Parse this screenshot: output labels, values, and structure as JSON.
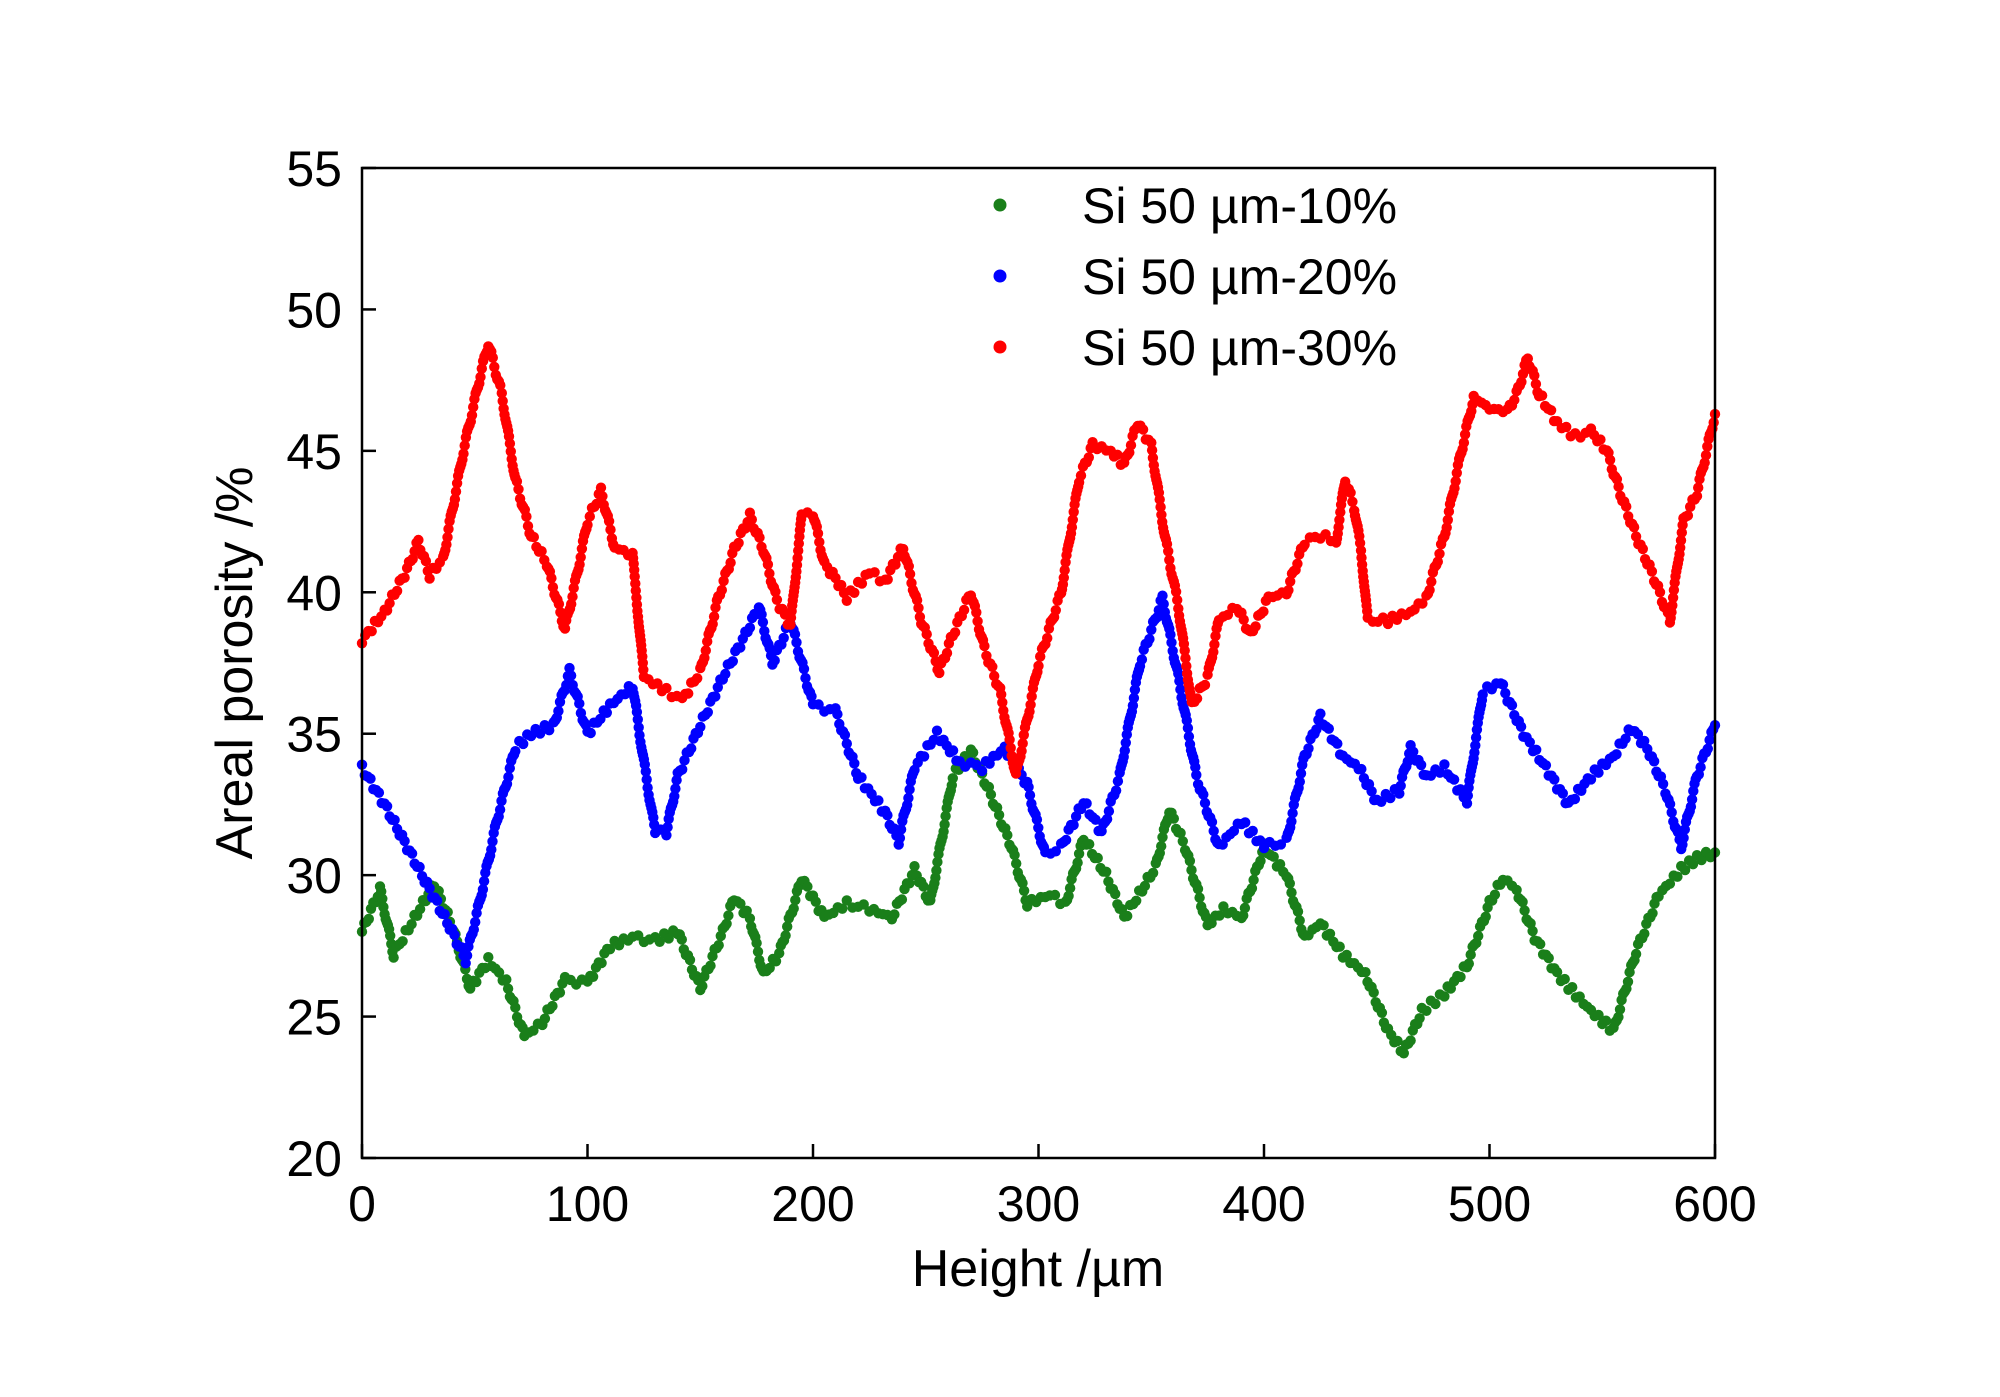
{
  "chart_data": {
    "type": "scatter",
    "title": "",
    "xlabel": "Height /µm",
    "ylabel": "Areal porosity /%",
    "xlim": [
      0,
      600
    ],
    "ylim": [
      20,
      55
    ],
    "xticks": [
      0,
      100,
      200,
      300,
      400,
      500,
      600
    ],
    "yticks": [
      20,
      25,
      30,
      35,
      40,
      45,
      50,
      55
    ],
    "grid": false,
    "legend_position": "top-right",
    "series": [
      {
        "name": "Si 50 µm-10%",
        "color": "#1a7f1a",
        "anchors": [
          [
            0,
            28
          ],
          [
            8,
            29.5
          ],
          [
            14,
            27.2
          ],
          [
            22,
            28.3
          ],
          [
            32,
            29.7
          ],
          [
            40,
            28.2
          ],
          [
            48,
            26
          ],
          [
            56,
            27
          ],
          [
            64,
            26.2
          ],
          [
            72,
            24.3
          ],
          [
            80,
            24.8
          ],
          [
            90,
            26.3
          ],
          [
            100,
            26.2
          ],
          [
            110,
            27.5
          ],
          [
            120,
            27.8
          ],
          [
            130,
            27.7
          ],
          [
            140,
            28
          ],
          [
            150,
            26
          ],
          [
            160,
            28
          ],
          [
            165,
            29.2
          ],
          [
            172,
            28.5
          ],
          [
            178,
            26.5
          ],
          [
            185,
            27.2
          ],
          [
            195,
            29.9
          ],
          [
            205,
            28.5
          ],
          [
            215,
            29
          ],
          [
            225,
            28.8
          ],
          [
            235,
            28.5
          ],
          [
            245,
            30.2
          ],
          [
            252,
            29
          ],
          [
            262,
            33.5
          ],
          [
            270,
            34.4
          ],
          [
            278,
            33
          ],
          [
            288,
            31
          ],
          [
            295,
            29
          ],
          [
            305,
            29.3
          ],
          [
            312,
            29
          ],
          [
            320,
            31.3
          ],
          [
            330,
            30
          ],
          [
            338,
            28.5
          ],
          [
            346,
            29.5
          ],
          [
            352,
            30.3
          ],
          [
            358,
            32.3
          ],
          [
            365,
            31
          ],
          [
            375,
            28.2
          ],
          [
            382,
            28.8
          ],
          [
            390,
            28.5
          ],
          [
            400,
            31
          ],
          [
            410,
            30
          ],
          [
            418,
            27.8
          ],
          [
            425,
            28.3
          ],
          [
            435,
            27.2
          ],
          [
            445,
            26.5
          ],
          [
            455,
            24.5
          ],
          [
            462,
            23.7
          ],
          [
            470,
            25.2
          ],
          [
            480,
            25.8
          ],
          [
            490,
            26.8
          ],
          [
            500,
            29
          ],
          [
            506,
            29.9
          ],
          [
            512,
            29.5
          ],
          [
            520,
            27.8
          ],
          [
            530,
            26.5
          ],
          [
            545,
            25.2
          ],
          [
            555,
            24.5
          ],
          [
            565,
            27.3
          ],
          [
            575,
            29.3
          ],
          [
            585,
            30.2
          ],
          [
            592,
            30.6
          ],
          [
            600,
            30.8
          ]
        ]
      },
      {
        "name": "Si 50 µm-20%",
        "color": "#0000ff",
        "anchors": [
          [
            0,
            33.8
          ],
          [
            10,
            32.5
          ],
          [
            20,
            31
          ],
          [
            30,
            29.5
          ],
          [
            40,
            28
          ],
          [
            46,
            27
          ],
          [
            52,
            29
          ],
          [
            60,
            32
          ],
          [
            68,
            34.5
          ],
          [
            75,
            35
          ],
          [
            85,
            35.3
          ],
          [
            92,
            37.2
          ],
          [
            100,
            35
          ],
          [
            110,
            36
          ],
          [
            120,
            36.7
          ],
          [
            125,
            34
          ],
          [
            130,
            31.5
          ],
          [
            135,
            31.5
          ],
          [
            140,
            33.5
          ],
          [
            150,
            35.3
          ],
          [
            160,
            37
          ],
          [
            170,
            38.5
          ],
          [
            176,
            39.5
          ],
          [
            182,
            37.5
          ],
          [
            190,
            39
          ],
          [
            200,
            36
          ],
          [
            210,
            35.8
          ],
          [
            220,
            33.5
          ],
          [
            232,
            32.2
          ],
          [
            238,
            31.2
          ],
          [
            245,
            33.8
          ],
          [
            255,
            35
          ],
          [
            265,
            34
          ],
          [
            275,
            33.8
          ],
          [
            285,
            34.5
          ],
          [
            295,
            33.2
          ],
          [
            303,
            30.7
          ],
          [
            310,
            31
          ],
          [
            320,
            32.6
          ],
          [
            328,
            31.5
          ],
          [
            336,
            33.5
          ],
          [
            345,
            37.5
          ],
          [
            355,
            39.8
          ],
          [
            362,
            37
          ],
          [
            370,
            33.5
          ],
          [
            380,
            31
          ],
          [
            390,
            31.9
          ],
          [
            400,
            31
          ],
          [
            410,
            31.2
          ],
          [
            418,
            34.2
          ],
          [
            425,
            35.6
          ],
          [
            435,
            34.2
          ],
          [
            442,
            33.8
          ],
          [
            450,
            32.6
          ],
          [
            460,
            33
          ],
          [
            465,
            34.5
          ],
          [
            472,
            33.5
          ],
          [
            480,
            33.8
          ],
          [
            490,
            32.6
          ],
          [
            497,
            36.5
          ],
          [
            505,
            36.8
          ],
          [
            515,
            35
          ],
          [
            525,
            33.8
          ],
          [
            535,
            32.5
          ],
          [
            545,
            33.5
          ],
          [
            555,
            34.2
          ],
          [
            563,
            35.2
          ],
          [
            570,
            34.5
          ],
          [
            578,
            33
          ],
          [
            585,
            31
          ],
          [
            592,
            33.5
          ],
          [
            600,
            35.3
          ]
        ]
      },
      {
        "name": "Si 50 µm-30%",
        "color": "#ff0000",
        "anchors": [
          [
            0,
            38.3
          ],
          [
            10,
            39.3
          ],
          [
            20,
            40.8
          ],
          [
            25,
            41.8
          ],
          [
            30,
            40.6
          ],
          [
            36,
            41.2
          ],
          [
            45,
            45
          ],
          [
            52,
            47.5
          ],
          [
            56,
            48.8
          ],
          [
            62,
            47
          ],
          [
            68,
            44
          ],
          [
            75,
            42
          ],
          [
            82,
            41
          ],
          [
            90,
            38.7
          ],
          [
            95,
            40.5
          ],
          [
            100,
            42.5
          ],
          [
            106,
            43.6
          ],
          [
            112,
            41.6
          ],
          [
            120,
            41.3
          ],
          [
            125,
            37
          ],
          [
            135,
            36.5
          ],
          [
            142,
            36.2
          ],
          [
            150,
            37.2
          ],
          [
            158,
            39.8
          ],
          [
            165,
            41.5
          ],
          [
            172,
            42.7
          ],
          [
            178,
            41.5
          ],
          [
            184,
            39.7
          ],
          [
            190,
            38.8
          ],
          [
            195,
            42.7
          ],
          [
            200,
            42.8
          ],
          [
            205,
            41
          ],
          [
            210,
            40.5
          ],
          [
            215,
            39.8
          ],
          [
            225,
            40.7
          ],
          [
            232,
            40.4
          ],
          [
            240,
            41.6
          ],
          [
            248,
            39
          ],
          [
            256,
            37.2
          ],
          [
            262,
            38.5
          ],
          [
            270,
            40
          ],
          [
            276,
            38
          ],
          [
            283,
            36.5
          ],
          [
            290,
            33.5
          ],
          [
            295,
            35.5
          ],
          [
            300,
            37.5
          ],
          [
            310,
            40
          ],
          [
            318,
            44
          ],
          [
            324,
            45.2
          ],
          [
            332,
            45
          ],
          [
            338,
            44.5
          ],
          [
            344,
            46
          ],
          [
            350,
            45.2
          ],
          [
            356,
            42
          ],
          [
            362,
            39.5
          ],
          [
            368,
            36
          ],
          [
            375,
            37
          ],
          [
            380,
            39
          ],
          [
            388,
            39.5
          ],
          [
            394,
            38.5
          ],
          [
            402,
            39.8
          ],
          [
            410,
            40
          ],
          [
            418,
            41.8
          ],
          [
            425,
            42
          ],
          [
            432,
            41.8
          ],
          [
            436,
            44
          ],
          [
            440,
            43
          ],
          [
            443,
            41.5
          ],
          [
            446,
            39
          ],
          [
            455,
            39
          ],
          [
            465,
            39.3
          ],
          [
            472,
            39.8
          ],
          [
            480,
            42
          ],
          [
            487,
            44.8
          ],
          [
            493,
            46.9
          ],
          [
            500,
            46.5
          ],
          [
            508,
            46.4
          ],
          [
            512,
            47
          ],
          [
            517,
            48.3
          ],
          [
            522,
            47
          ],
          [
            530,
            46
          ],
          [
            538,
            45.5
          ],
          [
            545,
            45.7
          ],
          [
            552,
            45
          ],
          [
            558,
            43.5
          ],
          [
            565,
            42
          ],
          [
            573,
            40.5
          ],
          [
            580,
            39
          ],
          [
            586,
            42.5
          ],
          [
            592,
            43.5
          ],
          [
            600,
            46.3
          ]
        ]
      }
    ]
  }
}
